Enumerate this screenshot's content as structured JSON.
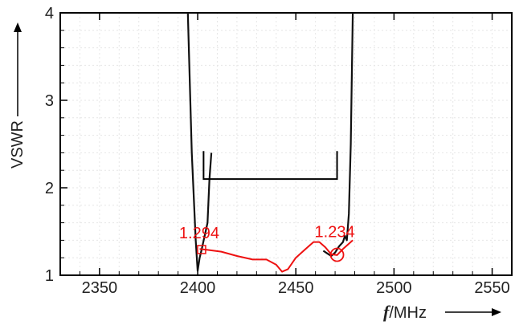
{
  "chart_data": {
    "type": "line",
    "ylabel": "VSWR",
    "xlabel_symbol": "f",
    "xlabel_unit": "/MHz",
    "xlim": [
      2330,
      2560
    ],
    "ylim": [
      1,
      4
    ],
    "x_ticks": [
      2350,
      2400,
      2450,
      2500,
      2550
    ],
    "y_ticks": [
      1,
      2,
      3,
      4
    ],
    "grid": true,
    "colors": {
      "measured": "#ee1111",
      "simulated": "#111111",
      "axes": "#000000"
    },
    "series": [
      {
        "points": [
          [
            2395,
            4
          ],
          [
            2397,
            2.4
          ],
          [
            2399,
            1.4
          ],
          [
            2400,
            1.05
          ],
          [
            2401,
            1.2
          ],
          [
            2402,
            1.29
          ],
          [
            2405,
            1.6
          ],
          [
            2406,
            2.1
          ],
          [
            2407,
            2.4
          ]
        ]
      },
      {
        "points": [
          [
            2464,
            1.28
          ],
          [
            2466,
            1.25
          ],
          [
            2468,
            1.22
          ],
          [
            2470,
            1.26
          ],
          [
            2472,
            1.33
          ],
          [
            2474,
            1.38
          ],
          [
            2475,
            1.45
          ],
          [
            2476,
            1.4
          ],
          [
            2477,
            1.7
          ],
          [
            2478,
            2.5
          ],
          [
            2479,
            4
          ]
        ]
      },
      {
        "points": [
          [
            2401,
            1.3
          ],
          [
            2405,
            1.29
          ],
          [
            2412,
            1.27
          ],
          [
            2420,
            1.22
          ],
          [
            2428,
            1.18
          ],
          [
            2435,
            1.18
          ],
          [
            2440,
            1.12
          ],
          [
            2443,
            1.04
          ],
          [
            2446,
            1.07
          ],
          [
            2450,
            1.2
          ],
          [
            2455,
            1.3
          ],
          [
            2459,
            1.38
          ],
          [
            2462,
            1.38
          ],
          [
            2465,
            1.32
          ],
          [
            2468,
            1.24
          ],
          [
            2471,
            1.23
          ],
          [
            2474,
            1.3
          ],
          [
            2477,
            1.36
          ],
          [
            2479,
            1.4
          ]
        ]
      }
    ],
    "bracket": {
      "x_start": 2403,
      "x_end": 2471,
      "y_base": 2.1,
      "y_top": 2.42
    },
    "markers": [
      {
        "shape": "square",
        "x": 2402,
        "y": 1.294,
        "label": "1.294"
      },
      {
        "shape": "circle",
        "x": 2471,
        "y": 1.234,
        "label": "1.234"
      }
    ]
  }
}
